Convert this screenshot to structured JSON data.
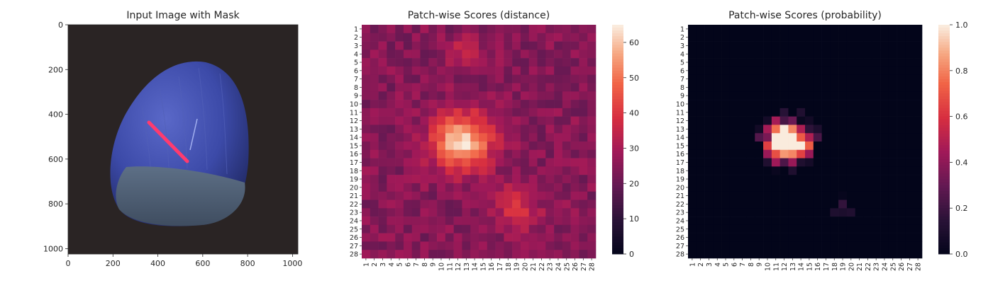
{
  "figure": {
    "panels": [
      {
        "title": "Input Image with Mask"
      },
      {
        "title": "Patch-wise Scores (distance)"
      },
      {
        "title": "Patch-wise Scores (probability)"
      }
    ]
  },
  "chart_data": [
    {
      "type": "image",
      "title": "Input Image with Mask",
      "xlim": [
        0,
        1024
      ],
      "ylim": [
        1024,
        0
      ],
      "xticks": [
        0,
        200,
        400,
        600,
        800,
        1000
      ],
      "yticks": [
        0,
        200,
        400,
        600,
        800,
        1000
      ],
      "content": "blue hazelnut on dark background with red anomaly mask",
      "mask_color": "#ff3b6e",
      "nut_color": "#3c4aa8",
      "background_color": "#2a2424"
    },
    {
      "type": "heatmap",
      "title": "Patch-wise Scores (distance)",
      "rows": 28,
      "cols": 28,
      "row_labels": [
        "1",
        "2",
        "3",
        "4",
        "5",
        "6",
        "7",
        "8",
        "9",
        "10",
        "11",
        "12",
        "13",
        "14",
        "15",
        "16",
        "17",
        "18",
        "19",
        "20",
        "21",
        "22",
        "23",
        "24",
        "25",
        "26",
        "27",
        "28"
      ],
      "col_labels": [
        "1",
        "2",
        "3",
        "4",
        "5",
        "6",
        "7",
        "8",
        "9",
        "10",
        "11",
        "12",
        "13",
        "14",
        "15",
        "16",
        "17",
        "18",
        "19",
        "20",
        "21",
        "22",
        "23",
        "24",
        "25",
        "26",
        "27",
        "28"
      ],
      "colorbar": {
        "min": 0,
        "max": 65,
        "ticks": [
          0,
          10,
          20,
          30,
          40,
          50,
          60
        ]
      },
      "colormap": "rocket",
      "base_value": 25,
      "hotspots": [
        {
          "row": 14.5,
          "col": 12.5,
          "peak": 63,
          "sigma": 2.4
        },
        {
          "row": 4,
          "col": 13,
          "peak": 12,
          "sigma": 1.2
        },
        {
          "row": 22.5,
          "col": 19,
          "peak": 12,
          "sigma": 2.0
        }
      ]
    },
    {
      "type": "heatmap",
      "title": "Patch-wise Scores (probability)",
      "rows": 28,
      "cols": 28,
      "row_labels": [
        "1",
        "2",
        "3",
        "4",
        "5",
        "6",
        "7",
        "8",
        "9",
        "10",
        "11",
        "12",
        "13",
        "14",
        "15",
        "16",
        "17",
        "18",
        "19",
        "20",
        "21",
        "22",
        "23",
        "24",
        "25",
        "26",
        "27",
        "28"
      ],
      "col_labels": [
        "1",
        "2",
        "3",
        "4",
        "5",
        "6",
        "7",
        "8",
        "9",
        "10",
        "11",
        "12",
        "13",
        "14",
        "15",
        "16",
        "17",
        "18",
        "19",
        "20",
        "21",
        "22",
        "23",
        "24",
        "25",
        "26",
        "27",
        "28"
      ],
      "colorbar": {
        "min": 0.0,
        "max": 1.0,
        "ticks": [
          0.0,
          0.2,
          0.4,
          0.6,
          0.8,
          1.0
        ]
      },
      "colorbar_tick_labels": [
        "0.0",
        "0.2",
        "0.4",
        "0.6",
        "0.8",
        "1.0"
      ],
      "colormap": "rocket",
      "threshold_from_distance": 38,
      "scale_from_distance": 18
    }
  ]
}
